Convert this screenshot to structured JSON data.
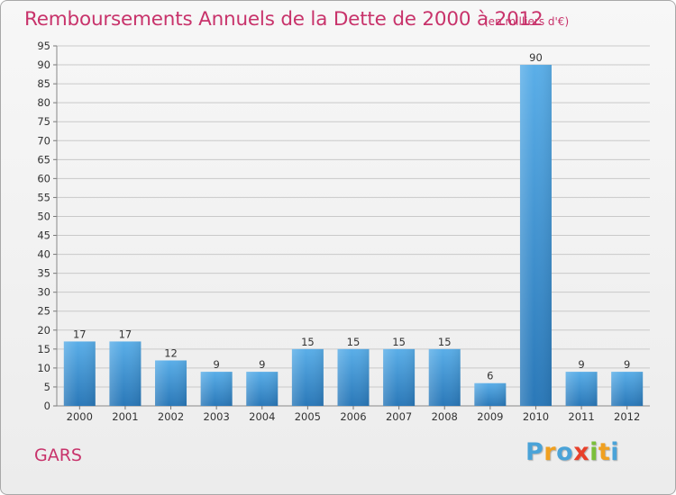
{
  "title": "Remboursements Annuels de la Dette de 2000 à 2012",
  "unit_note": "(en milliers d'€)",
  "town": "GARS",
  "brand": {
    "letters": [
      "P",
      "r",
      "o",
      "x",
      "i",
      "t",
      "i"
    ],
    "colors": [
      "#4aa3d8",
      "#f0a020",
      "#4aa3d8",
      "#e8402a",
      "#7bbf3a",
      "#f0a020",
      "#4aa3d8"
    ]
  },
  "chart_data": {
    "type": "bar",
    "categories": [
      "2000",
      "2001",
      "2002",
      "2003",
      "2004",
      "2005",
      "2006",
      "2007",
      "2008",
      "2009",
      "2010",
      "2011",
      "2012"
    ],
    "values": [
      17,
      17,
      12,
      9,
      9,
      15,
      15,
      15,
      15,
      6,
      90,
      9,
      9
    ],
    "data_labels": [
      "17",
      "17",
      "12",
      "9",
      "9",
      "15",
      "15",
      "15",
      "15",
      "6",
      "90",
      "9",
      "9"
    ],
    "yticks": [
      "0",
      "5",
      "10",
      "15",
      "20",
      "25",
      "30",
      "35",
      "40",
      "45",
      "50",
      "55",
      "60",
      "65",
      "70",
      "75",
      "80",
      "85",
      "90",
      "95"
    ],
    "ylim": [
      0,
      95
    ],
    "grid": true,
    "bar_color_top": "#5aaee8",
    "bar_color_bottom": "#2a78b8"
  }
}
